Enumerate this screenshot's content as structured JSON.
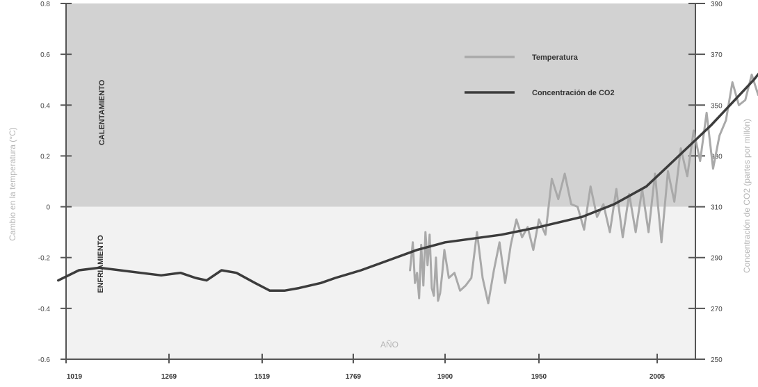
{
  "chart_data": {
    "type": "line",
    "title": "",
    "xlabel": "AÑO",
    "ylabel_left": "Cambio en la temperatura (°C)",
    "ylabel_right": "Concentración de CO2 (partes por millón)",
    "x_ticks": [
      "1019",
      "1269",
      "1519",
      "1769",
      "1900",
      "1950",
      "2005"
    ],
    "y_left_ticks": [
      "0.8",
      "0.6",
      "0.4",
      "0.2",
      "0",
      "-0.2",
      "-0.4",
      "-0.6"
    ],
    "y_right_ticks": [
      "390",
      "370",
      "350",
      "330",
      "310",
      "290",
      "270",
      "250"
    ],
    "ylim_left": [
      -0.6,
      0.8
    ],
    "ylim_right": [
      250,
      390
    ],
    "regions": {
      "warm_label": "CALENTAMIENTO",
      "cool_label": "ENFRIAMIENTO",
      "warm_color": "#d2d2d2",
      "cool_color": "#f2f2f2"
    },
    "legend": {
      "placement": "top-right"
    },
    "series": [
      {
        "name": "Temperatura",
        "color": "#a9a9a9",
        "axis": "left",
        "points": [
          [
            1850,
            -0.25
          ],
          [
            1854,
            -0.14
          ],
          [
            1857,
            -0.3
          ],
          [
            1860,
            -0.26
          ],
          [
            1863,
            -0.36
          ],
          [
            1866,
            -0.15
          ],
          [
            1869,
            -0.31
          ],
          [
            1872,
            -0.1
          ],
          [
            1875,
            -0.23
          ],
          [
            1878,
            -0.11
          ],
          [
            1881,
            -0.32
          ],
          [
            1884,
            -0.35
          ],
          [
            1887,
            -0.2
          ],
          [
            1890,
            -0.37
          ],
          [
            1893,
            -0.34
          ],
          [
            1896,
            -0.26
          ],
          [
            1899,
            -0.17
          ],
          [
            1902,
            -0.28
          ],
          [
            1905,
            -0.26
          ],
          [
            1908,
            -0.33
          ],
          [
            1911,
            -0.31
          ],
          [
            1914,
            -0.28
          ],
          [
            1917,
            -0.1
          ],
          [
            1920,
            -0.28
          ],
          [
            1923,
            -0.38
          ],
          [
            1926,
            -0.25
          ],
          [
            1929,
            -0.14
          ],
          [
            1932,
            -0.3
          ],
          [
            1935,
            -0.15
          ],
          [
            1938,
            -0.05
          ],
          [
            1941,
            -0.12
          ],
          [
            1944,
            -0.08
          ],
          [
            1947,
            -0.17
          ],
          [
            1950,
            -0.05
          ],
          [
            1953,
            -0.11
          ],
          [
            1956,
            0.11
          ],
          [
            1959,
            0.03
          ],
          [
            1962,
            0.13
          ],
          [
            1965,
            0.01
          ],
          [
            1968,
            0.0
          ],
          [
            1971,
            -0.09
          ],
          [
            1974,
            0.08
          ],
          [
            1977,
            -0.04
          ],
          [
            1980,
            0.01
          ],
          [
            1983,
            -0.1
          ],
          [
            1986,
            0.07
          ],
          [
            1989,
            -0.12
          ],
          [
            1992,
            0.05
          ],
          [
            1995,
            -0.1
          ],
          [
            1998,
            0.07
          ],
          [
            2001,
            -0.1
          ],
          [
            2004,
            0.13
          ],
          [
            2007,
            -0.14
          ],
          [
            2010,
            0.14
          ],
          [
            2013,
            0.02
          ],
          [
            2016,
            0.23
          ],
          [
            2019,
            0.12
          ],
          [
            2022,
            0.3
          ],
          [
            2025,
            0.18
          ],
          [
            2028,
            0.37
          ],
          [
            2031,
            0.15
          ],
          [
            2034,
            0.28
          ],
          [
            2037,
            0.34
          ],
          [
            2040,
            0.49
          ],
          [
            2043,
            0.4
          ],
          [
            2046,
            0.42
          ],
          [
            2049,
            0.52
          ],
          [
            2052,
            0.44
          ],
          [
            2055,
            0.6
          ]
        ]
      },
      {
        "name": "Concentración de CO2",
        "color": "#3c3c3c",
        "axis": "right",
        "points": [
          [
            1000,
            281
          ],
          [
            1050,
            285
          ],
          [
            1100,
            286
          ],
          [
            1150,
            285
          ],
          [
            1200,
            284
          ],
          [
            1250,
            283
          ],
          [
            1300,
            284
          ],
          [
            1340,
            282
          ],
          [
            1370,
            281
          ],
          [
            1410,
            285
          ],
          [
            1450,
            284
          ],
          [
            1500,
            280
          ],
          [
            1540,
            277
          ],
          [
            1580,
            277
          ],
          [
            1620,
            278
          ],
          [
            1680,
            280
          ],
          [
            1720,
            282
          ],
          [
            1780,
            285
          ],
          [
            1820,
            289
          ],
          [
            1860,
            293
          ],
          [
            1900,
            296
          ],
          [
            1930,
            299
          ],
          [
            1950,
            302
          ],
          [
            1970,
            306
          ],
          [
            1985,
            311
          ],
          [
            2000,
            318
          ],
          [
            2010,
            326
          ],
          [
            2030,
            342
          ],
          [
            2050,
            360
          ],
          [
            2065,
            376
          ]
        ]
      }
    ]
  }
}
